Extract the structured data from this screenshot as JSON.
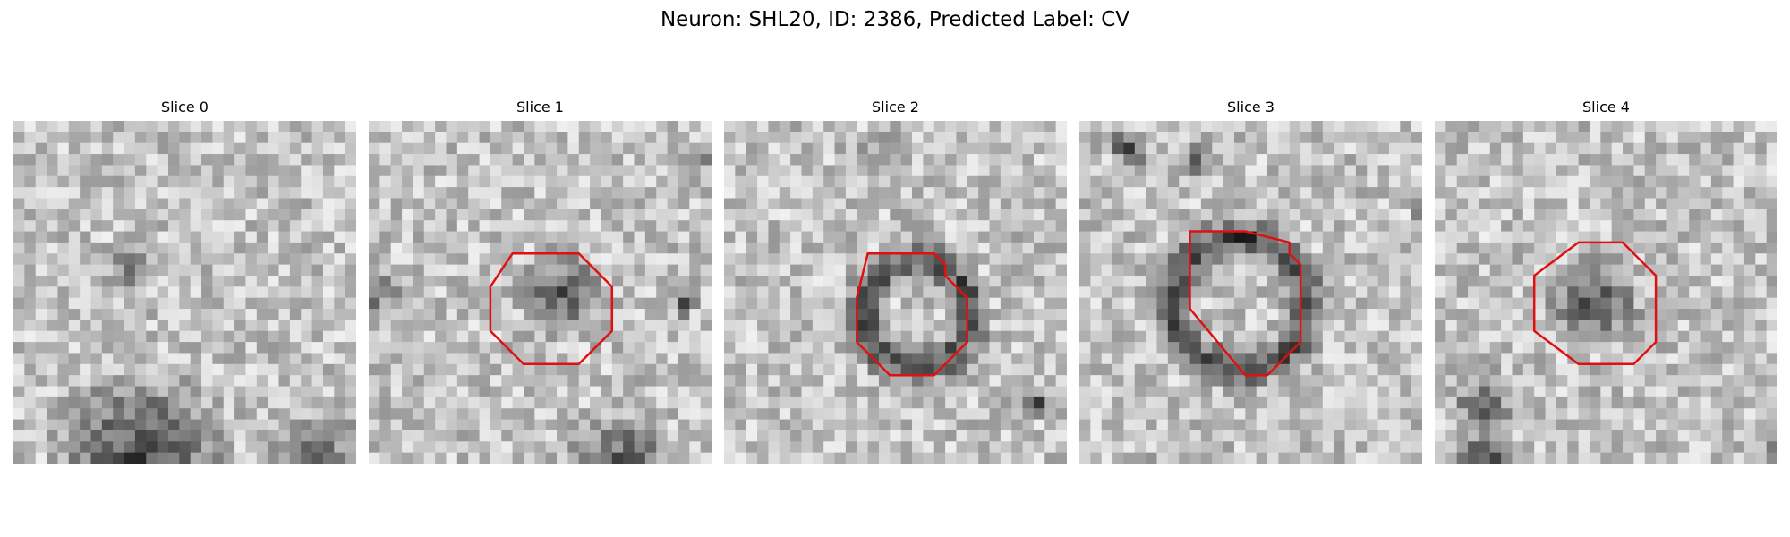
{
  "figure": {
    "title": "Neuron: SHL20, ID: 2386, Predicted Label: CV",
    "outline_color": "#e01010"
  },
  "slices": [
    {
      "title": "Slice 0",
      "has_outline": false
    },
    {
      "title": "Slice 1",
      "has_outline": true
    },
    {
      "title": "Slice 2",
      "has_outline": true
    },
    {
      "title": "Slice 3",
      "has_outline": true
    },
    {
      "title": "Slice 4",
      "has_outline": true
    }
  ]
}
